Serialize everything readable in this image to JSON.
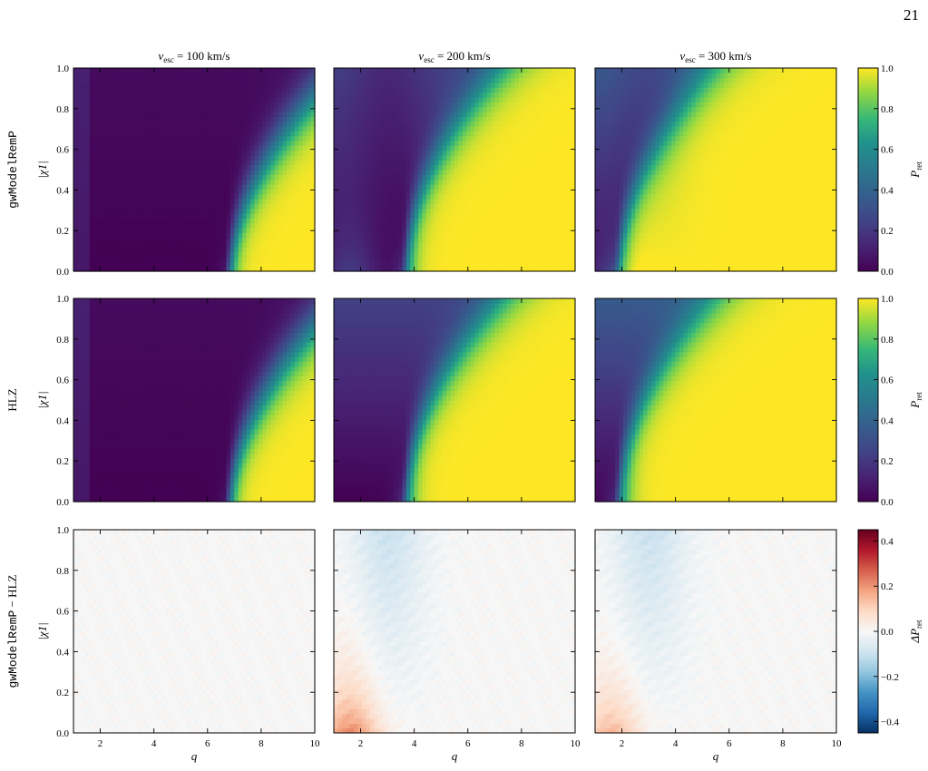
{
  "page_number": "21",
  "columns": [
    {
      "vesc": "100",
      "vesc_symbol": "v",
      "vesc_sub": "esc",
      "unit": "km/s"
    },
    {
      "vesc": "200",
      "vesc_symbol": "v",
      "vesc_sub": "esc",
      "unit": "km/s"
    },
    {
      "vesc": "300",
      "vesc_symbol": "v",
      "vesc_sub": "esc",
      "unit": "km/s"
    }
  ],
  "rows": [
    {
      "label": "gwModelRemP",
      "label_font": "mono",
      "colorbar_label": "P",
      "colorbar_sub": "ret"
    },
    {
      "label": "HLZ",
      "label_font": "serif",
      "colorbar_label": "P",
      "colorbar_sub": "ret"
    },
    {
      "label_parts": [
        "gwModelRemP",
        " − ",
        "HLZ"
      ],
      "colorbar_label": "ΔP",
      "colorbar_sub": "ret"
    }
  ],
  "ylabel": "|χ1|",
  "xlabel": "q",
  "chart_data": [
    {
      "type": "heatmap",
      "panels": "3x3 grid of heatmaps: retention probability vs mass ratio q and primary spin |χ1|",
      "x_range": [
        1,
        10
      ],
      "x_ticks": [
        2,
        4,
        6,
        8,
        10
      ],
      "y_range": [
        0.0,
        1.0
      ],
      "y_ticks": [
        "0.0",
        "0.2",
        "0.4",
        "0.6",
        "0.8",
        "1.0"
      ],
      "colorbar_rows_1_2": {
        "range": [
          0.0,
          1.0
        ],
        "ticks": [
          "0.0",
          "0.2",
          "0.4",
          "0.6",
          "0.8",
          "1.0"
        ],
        "colormap": "viridis"
      },
      "colorbar_row_3": {
        "range": [
          -0.45,
          0.45
        ],
        "ticks": [
          "−0.4",
          "−0.2",
          "0.0",
          "0.2",
          "0.4"
        ],
        "colormap": "RdBu_r"
      },
      "colors": {
        "viridis_low": "#440154",
        "viridis_mid": "#21918c",
        "viridis_high": "#fde725",
        "diff_negative": "#053061",
        "diff_zero": "#f7f7f7",
        "diff_positive": "#67001f"
      }
    }
  ]
}
